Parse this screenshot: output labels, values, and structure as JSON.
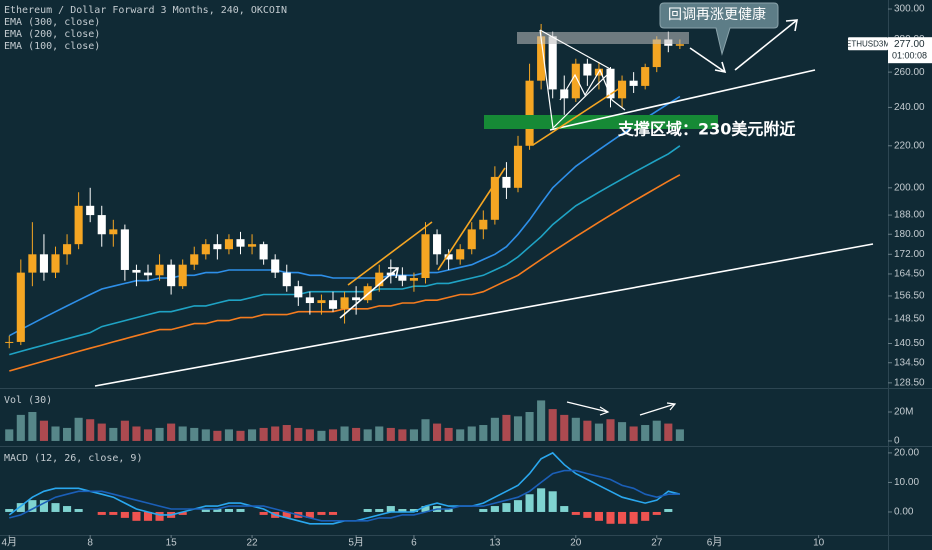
{
  "chart_data": [
    {
      "type": "candlestick",
      "title": "Ethereum / Dollar Forward 3 Months, 240, OKCOIN",
      "x": [
        0,
        1,
        2,
        3,
        4,
        5,
        6,
        7,
        8,
        9,
        10,
        11,
        12,
        13,
        14,
        15,
        16,
        17,
        18,
        19,
        20,
        21,
        22,
        23,
        24,
        25,
        26,
        27,
        28,
        29,
        30,
        31,
        32,
        33,
        34,
        35,
        36,
        37,
        38,
        39,
        40,
        41,
        42,
        43,
        44,
        45,
        46,
        47,
        48,
        49,
        50,
        51,
        52,
        53,
        54,
        55,
        56,
        57,
        58
      ],
      "open": [
        141,
        141,
        165,
        172,
        165,
        172,
        176,
        192,
        188,
        180,
        182,
        166,
        165,
        164,
        168,
        160,
        168,
        172,
        176,
        174,
        178,
        175,
        176,
        170,
        165,
        160,
        156,
        154,
        155,
        152,
        156,
        155,
        160,
        165,
        164,
        162,
        163,
        180,
        172,
        170,
        174,
        182,
        186,
        205,
        200,
        220,
        255,
        282,
        250,
        245,
        265,
        258,
        262,
        245,
        255,
        252,
        263,
        280,
        276
      ],
      "high": [
        143,
        170,
        185,
        180,
        175,
        180,
        198,
        200,
        192,
        186,
        184,
        168,
        168,
        172,
        170,
        170,
        175,
        178,
        180,
        180,
        181,
        180,
        177,
        172,
        168,
        162,
        158,
        157,
        158,
        158,
        160,
        161,
        168,
        170,
        167,
        165,
        185,
        182,
        174,
        176,
        185,
        190,
        210,
        212,
        225,
        265,
        290,
        285,
        258,
        268,
        268,
        266,
        263,
        258,
        260,
        265,
        282,
        285,
        280
      ],
      "low": [
        139,
        140,
        160,
        162,
        163,
        168,
        174,
        185,
        175,
        175,
        162,
        160,
        162,
        162,
        157,
        159,
        166,
        170,
        170,
        172,
        172,
        172,
        168,
        163,
        158,
        153,
        150,
        150,
        151,
        147,
        150,
        154,
        158,
        161,
        160,
        158,
        161,
        168,
        166,
        168,
        172,
        178,
        184,
        195,
        198,
        218,
        250,
        245,
        236,
        243,
        252,
        250,
        240,
        240,
        248,
        250,
        260,
        272,
        274
      ],
      "close": [
        141,
        165,
        172,
        165,
        172,
        176,
        192,
        188,
        180,
        182,
        166,
        165,
        164,
        168,
        160,
        168,
        172,
        176,
        174,
        178,
        175,
        176,
        170,
        165,
        160,
        156,
        154,
        155,
        152,
        156,
        155,
        160,
        165,
        164,
        162,
        163,
        180,
        172,
        170,
        174,
        182,
        186,
        205,
        200,
        220,
        255,
        282,
        250,
        245,
        265,
        258,
        262,
        245,
        255,
        252,
        263,
        280,
        276,
        277
      ],
      "up_color": "#f5a623",
      "down_color": "#ffffff",
      "series": [
        {
          "name": "EMA (300, close)",
          "color": "#f57c1f",
          "values": [
            132,
            133,
            134,
            135,
            136,
            137,
            138,
            139,
            140,
            141,
            142,
            143,
            144,
            145,
            145,
            146,
            147,
            147,
            148,
            148,
            149,
            149,
            150,
            150,
            150,
            151,
            151,
            151,
            151,
            152,
            152,
            152,
            153,
            153,
            154,
            154,
            155,
            155,
            156,
            157,
            157,
            158,
            160,
            162,
            164,
            167,
            170,
            173,
            176,
            179,
            182,
            185,
            188,
            191,
            194,
            197,
            200,
            203,
            206
          ]
        },
        {
          "name": "EMA (200, close)",
          "color": "#1fa3c4",
          "values": [
            137,
            138,
            139,
            140,
            141,
            142,
            143,
            144,
            146,
            147,
            148,
            149,
            150,
            151,
            151,
            152,
            153,
            153,
            154,
            155,
            155,
            156,
            157,
            157,
            157,
            157,
            158,
            158,
            158,
            158,
            158,
            158,
            159,
            159,
            159,
            160,
            160,
            161,
            161,
            162,
            163,
            164,
            166,
            168,
            171,
            175,
            179,
            184,
            188,
            192,
            195,
            198,
            201,
            204,
            207,
            210,
            213,
            216,
            220
          ]
        },
        {
          "name": "EMA (100, close)",
          "color": "#2e8fe8",
          "values": [
            143,
            145,
            147,
            149,
            151,
            153,
            155,
            157,
            159,
            160,
            161,
            162,
            162,
            163,
            163,
            164,
            164,
            165,
            165,
            166,
            166,
            166,
            166,
            166,
            165,
            165,
            164,
            164,
            163,
            163,
            163,
            163,
            163,
            164,
            164,
            164,
            165,
            165,
            166,
            167,
            168,
            170,
            172,
            175,
            180,
            186,
            193,
            200,
            205,
            210,
            214,
            218,
            222,
            226,
            230,
            234,
            238,
            242,
            246
          ]
        }
      ],
      "log_scale": true,
      "grid": false,
      "ylim": [
        127.3,
        306.2
      ],
      "yticks": [
        {
          "value": 300,
          "label": "300.00"
        },
        {
          "value": 280,
          "label": "280.00"
        },
        {
          "value": 260,
          "label": "260.00"
        },
        {
          "value": 240,
          "label": "240.00"
        },
        {
          "value": 220,
          "label": "220.00"
        },
        {
          "value": 200,
          "label": "200.00"
        },
        {
          "value": 188,
          "label": "188.00"
        },
        {
          "value": 180,
          "label": "180.00"
        },
        {
          "value": 172,
          "label": "172.00"
        },
        {
          "value": 164.5,
          "label": "164.50"
        },
        {
          "value": 156.5,
          "label": "156.50"
        },
        {
          "value": 148.5,
          "label": "148.50"
        },
        {
          "value": 140.5,
          "label": "140.50"
        },
        {
          "value": 134.5,
          "label": "134.50"
        },
        {
          "value": 128.5,
          "label": "128.50"
        }
      ],
      "xlim": [
        -0.8,
        76
      ],
      "xticks": [
        {
          "value": 0,
          "label": "4月"
        },
        {
          "value": 7,
          "label": "8"
        },
        {
          "value": 14,
          "label": "15"
        },
        {
          "value": 21,
          "label": "22"
        },
        {
          "value": 30,
          "label": "5月"
        },
        {
          "value": 35,
          "label": "6"
        },
        {
          "value": 42,
          "label": "13"
        },
        {
          "value": 49,
          "label": "20"
        },
        {
          "value": 56,
          "label": "27"
        },
        {
          "value": 61,
          "label": "6月"
        },
        {
          "value": 70,
          "label": "10"
        }
      ],
      "symbol": "ETHUSD3M",
      "last_price": {
        "value": 277,
        "label": "277.00"
      },
      "countdown": "01:00:08",
      "annotations": [
        "回调再涨更健康",
        "支撑区域：230美元附近"
      ]
    },
    {
      "type": "bar",
      "title": "Vol (30)",
      "x": [
        0,
        1,
        2,
        3,
        4,
        5,
        6,
        7,
        8,
        9,
        10,
        11,
        12,
        13,
        14,
        15,
        16,
        17,
        18,
        19,
        20,
        21,
        22,
        23,
        24,
        25,
        26,
        27,
        28,
        29,
        30,
        31,
        32,
        33,
        34,
        35,
        36,
        37,
        38,
        39,
        40,
        41,
        42,
        43,
        44,
        45,
        46,
        47,
        48,
        49,
        50,
        51,
        52,
        53,
        54,
        55,
        56,
        57,
        58
      ],
      "values": [
        8,
        18,
        20,
        14,
        10,
        9,
        16,
        15,
        12,
        9,
        14,
        10,
        8,
        9,
        12,
        10,
        9,
        8,
        7,
        8,
        7,
        8,
        9,
        10,
        11,
        9,
        8,
        7,
        8,
        10,
        9,
        8,
        10,
        9,
        8,
        8,
        15,
        12,
        9,
        8,
        10,
        11,
        16,
        18,
        17,
        20,
        28,
        22,
        18,
        16,
        14,
        12,
        15,
        13,
        10,
        11,
        14,
        12,
        8
      ],
      "up_color": "#6fa7a6",
      "down_color": "#e0555a",
      "ylim": [
        -2.8,
        35.2
      ],
      "yticks": [
        {
          "value": 20,
          "label": "20M"
        },
        0
      ]
    },
    {
      "type": "macd",
      "title": "MACD (12, 26, close, 9)",
      "x": [
        0,
        1,
        2,
        3,
        4,
        5,
        6,
        7,
        8,
        9,
        10,
        11,
        12,
        13,
        14,
        15,
        16,
        17,
        18,
        19,
        20,
        21,
        22,
        23,
        24,
        25,
        26,
        27,
        28,
        29,
        30,
        31,
        32,
        33,
        34,
        35,
        36,
        37,
        38,
        39,
        40,
        41,
        42,
        43,
        44,
        45,
        46,
        47,
        48,
        49,
        50,
        51,
        52,
        53,
        54,
        55,
        56,
        57,
        58
      ],
      "series": [
        {
          "color": "#2aa7ee",
          "values": [
            -1,
            2,
            5,
            7,
            8,
            8,
            8,
            7,
            6,
            5,
            3,
            1,
            0,
            -1,
            -1,
            0,
            1,
            2,
            2,
            3,
            3,
            2,
            1,
            -1,
            -2,
            -3,
            -4,
            -4,
            -4,
            -3,
            -3,
            -2,
            -1,
            0,
            0,
            0,
            2,
            3,
            2,
            2,
            2,
            3,
            5,
            7,
            9,
            13,
            18,
            20,
            16,
            13,
            11,
            9,
            7,
            5,
            4,
            3,
            4,
            7,
            6
          ]
        },
        {
          "color": "#1b5fb8",
          "values": [
            -2,
            -1,
            1,
            3,
            5,
            6,
            7,
            7,
            7,
            6,
            5,
            4,
            3,
            2,
            1,
            1,
            1,
            1,
            1,
            2,
            2,
            2,
            2,
            1,
            0,
            -1,
            -2,
            -3,
            -3,
            -3,
            -3,
            -3,
            -2,
            -2,
            -1,
            -1,
            0,
            1,
            1,
            2,
            2,
            2,
            3,
            4,
            5,
            7,
            10,
            13,
            14,
            14,
            13,
            12,
            11,
            9,
            8,
            6,
            5,
            6,
            6
          ]
        }
      ],
      "histogram": [
        1,
        3,
        4,
        4,
        3,
        2,
        1,
        0,
        -1,
        -1,
        -2,
        -3,
        -3,
        -3,
        -2,
        -1,
        0,
        1,
        1,
        1,
        1,
        0,
        -1,
        -2,
        -2,
        -2,
        -2,
        -1,
        -1,
        0,
        0,
        1,
        1,
        2,
        1,
        1,
        2,
        2,
        1,
        0,
        0,
        1,
        2,
        3,
        4,
        6,
        8,
        7,
        2,
        -1,
        -2,
        -3,
        -4,
        -4,
        -4,
        -3,
        -1,
        1,
        0
      ],
      "positive_color": "#7fd3d0",
      "negative_color": "#ef5350",
      "ylim": [
        -7.8,
        22
      ],
      "yticks": [
        {
          "value": 20,
          "label": "20.00"
        },
        {
          "value": 10,
          "label": "10.00"
        },
        {
          "value": 0,
          "label": "0.00"
        }
      ]
    }
  ]
}
